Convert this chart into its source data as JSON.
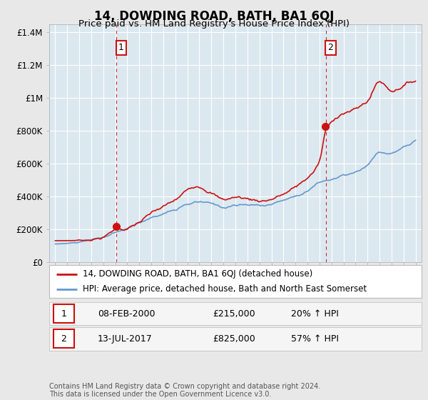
{
  "title": "14, DOWDING ROAD, BATH, BA1 6QJ",
  "subtitle": "Price paid vs. HM Land Registry's House Price Index (HPI)",
  "title_fontsize": 12,
  "subtitle_fontsize": 9.5,
  "background_color": "#e8e8e8",
  "plot_bg_color": "#dce8f0",
  "grid_color": "#ffffff",
  "ylim": [
    0,
    1450000
  ],
  "xlim_start": 1994.5,
  "xlim_end": 2025.5,
  "yticks": [
    0,
    200000,
    400000,
    600000,
    800000,
    1000000,
    1200000,
    1400000
  ],
  "ytick_labels": [
    "£0",
    "£200K",
    "£400K",
    "£600K",
    "£800K",
    "£1M",
    "£1.2M",
    "£1.4M"
  ],
  "property_color": "#cc1111",
  "hpi_color": "#6699cc",
  "vline_color": "#cc1111",
  "sale1_x": 2000.08,
  "sale1_y": 215000,
  "sale2_x": 2017.53,
  "sale2_y": 825000,
  "sale1_label": "1",
  "sale2_label": "2",
  "legend_property": "14, DOWDING ROAD, BATH, BA1 6QJ (detached house)",
  "legend_hpi": "HPI: Average price, detached house, Bath and North East Somerset",
  "table_row1": [
    "1",
    "08-FEB-2000",
    "£215,000",
    "20% ↑ HPI"
  ],
  "table_row2": [
    "2",
    "13-JUL-2017",
    "£825,000",
    "57% ↑ HPI"
  ],
  "footer": "Contains HM Land Registry data © Crown copyright and database right 2024.\nThis data is licensed under the Open Government Licence v3.0."
}
